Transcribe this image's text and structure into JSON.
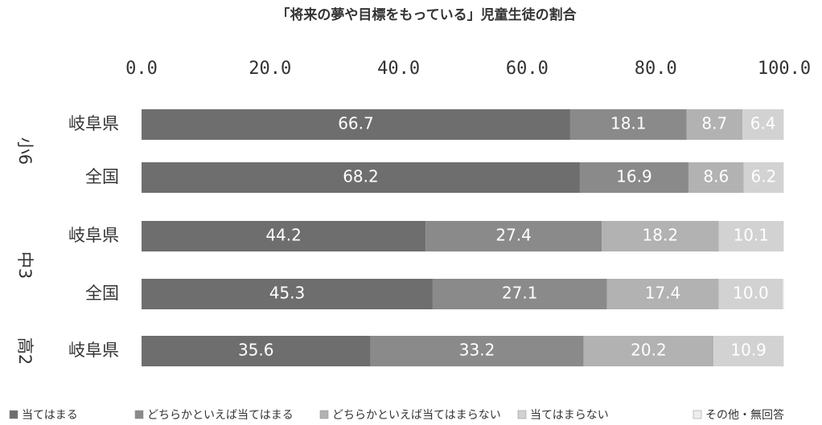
{
  "chart_data": {
    "type": "bar",
    "orientation": "horizontal",
    "stacked": true,
    "title": "「将来の夢や目標をもっている」児童生徒の割合",
    "xlim": [
      0,
      100
    ],
    "x_ticks": [
      "0.0",
      "20.0",
      "40.0",
      "60.0",
      "80.0",
      "100.0"
    ],
    "groups": [
      {
        "name": "小6",
        "categories": [
          "岐阜県",
          "全国"
        ]
      },
      {
        "name": "中3",
        "categories": [
          "岐阜県",
          "全国"
        ]
      },
      {
        "name": "高2",
        "categories": [
          "岐阜県"
        ]
      }
    ],
    "categories": [
      "岐阜県",
      "全国",
      "岐阜県",
      "全国",
      "岐阜県"
    ],
    "series": [
      {
        "name": "当てはまる",
        "values": [
          66.7,
          68.2,
          44.2,
          45.3,
          35.6
        ],
        "labels": [
          "66.7",
          "68.2",
          "44.2",
          "45.3",
          "35.6"
        ],
        "color": "#6e6e6e"
      },
      {
        "name": "どちらかといえば当てはまる",
        "values": [
          18.1,
          16.9,
          27.4,
          27.1,
          33.2
        ],
        "labels": [
          "18.1",
          "16.9",
          "27.4",
          "27.1",
          "33.2"
        ],
        "color": "#8a8a8a"
      },
      {
        "name": "どちらかといえば当てはまらない",
        "values": [
          8.7,
          8.6,
          18.2,
          17.4,
          20.2
        ],
        "labels": [
          "8.7",
          "8.6",
          "18.2",
          "17.4",
          "20.2"
        ],
        "color": "#b2b2b2"
      },
      {
        "name": "当てはまらない",
        "values": [
          6.4,
          6.2,
          10.1,
          10.0,
          10.9
        ],
        "labels": [
          "6.4",
          "6.2",
          "10.1",
          "10.0",
          "10.9"
        ],
        "color": "#d2d2d2"
      },
      {
        "name": "その他・無回答",
        "values": [
          0.1,
          0.1,
          0.1,
          0.2,
          0.1
        ],
        "labels": [
          "",
          "",
          "",
          "",
          ""
        ],
        "color": "#ededed"
      }
    ],
    "grid": false,
    "legend_position": "bottom"
  }
}
